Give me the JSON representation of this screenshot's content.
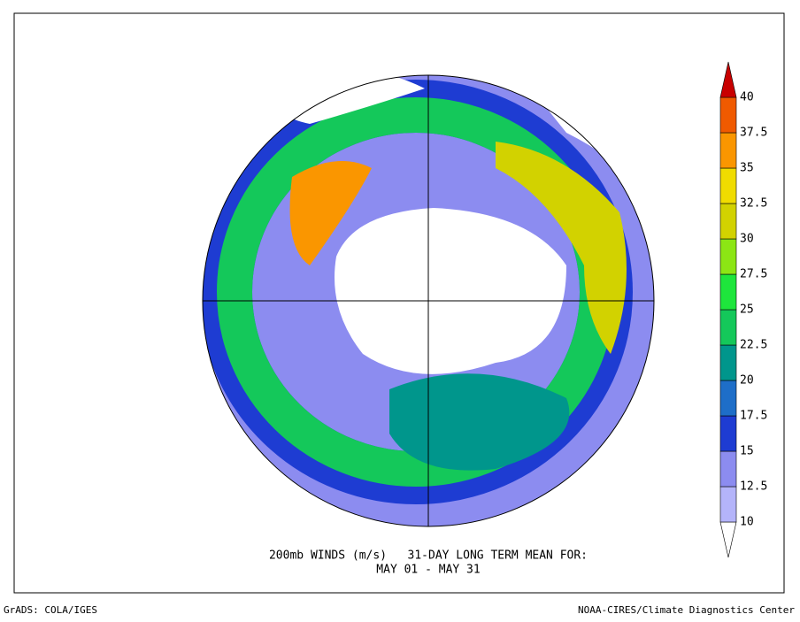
{
  "title": [
    "200mb WINDS (m/s)   31-DAY LONG TERM MEAN FOR:",
    "MAY 01 - MAY 31"
  ],
  "footer_left": "GrADS: COLA/IGES",
  "footer_right": "NOAA-CIRES/Climate Diagnostics Center",
  "colorbar": {
    "levels": [
      10,
      12.5,
      15,
      17.5,
      20,
      22.5,
      25,
      27.5,
      30,
      32.5,
      35,
      37.5,
      40
    ],
    "colors": [
      "#ffffff",
      "#b4b4fa",
      "#8c8cf0",
      "#1e3cd2",
      "#1e6ec8",
      "#00968c",
      "#14c85a",
      "#1ee63c",
      "#8ce614",
      "#d2d200",
      "#f0dc00",
      "#fa9600",
      "#f05a00",
      "#c80000"
    ]
  }
}
